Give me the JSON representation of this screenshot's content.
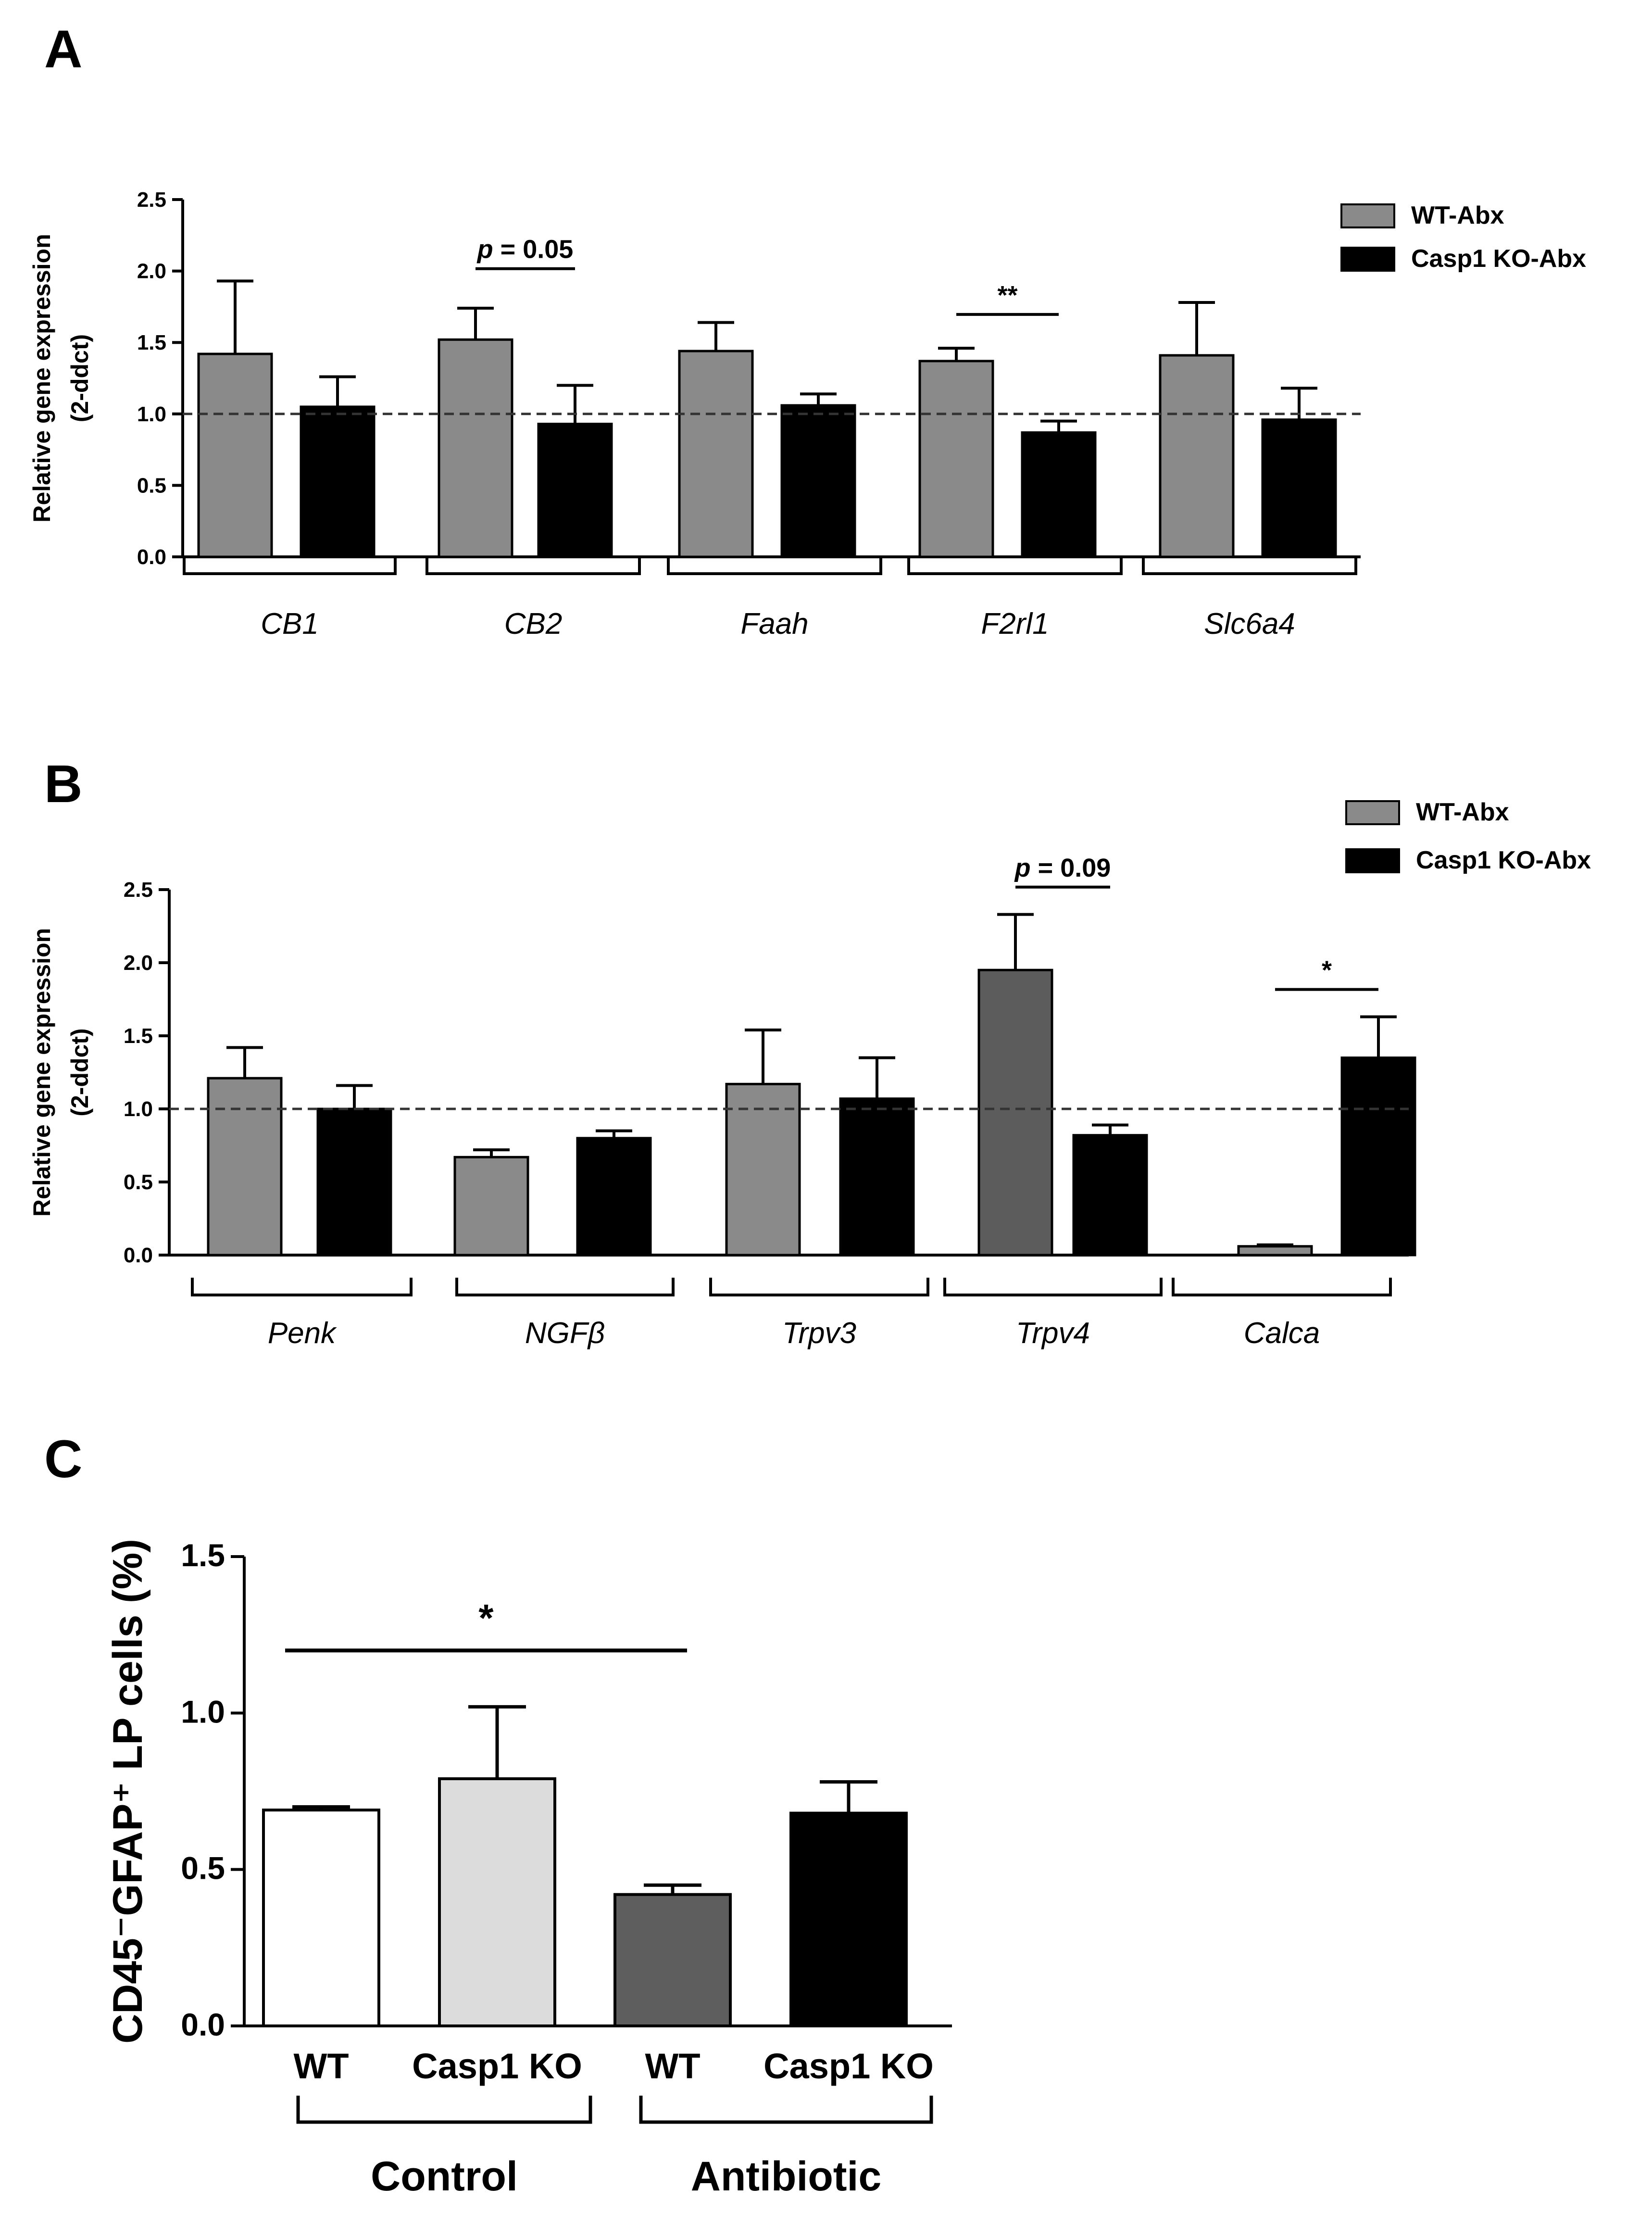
{
  "colors": {
    "wt_abx": "#8a8a8a",
    "wt_abx_trpv4": "#5c5c5c",
    "casp1_abx": "#000000",
    "c_wt_control": "#ffffff",
    "c_casp1_control": "#dcdcdc",
    "c_wt_antibiotic": "#5e5e5e",
    "c_casp1_antibiotic": "#000000"
  },
  "chart_data": [
    {
      "panel": "A",
      "type": "bar",
      "ylabel_line1": "Relative gene expression",
      "ylabel_line2": "(2-ddct)",
      "ylim": [
        0,
        2.5
      ],
      "yticks": [
        "0.0",
        "0.5",
        "1.0",
        "1.5",
        "2.0",
        "2.5"
      ],
      "reference_line": 1.0,
      "categories": [
        "CB1",
        "CB2",
        "Faah",
        "F2rl1",
        "Slc6a4"
      ],
      "legend": [
        "WT-Abx",
        "Casp1 KO-Abx"
      ],
      "series": [
        {
          "name": "WT-Abx",
          "values": [
            1.42,
            1.52,
            1.44,
            1.37,
            1.41
          ],
          "errors": [
            0.51,
            0.22,
            0.2,
            0.09,
            0.37
          ]
        },
        {
          "name": "Casp1 KO-Abx",
          "values": [
            1.05,
            0.93,
            1.06,
            0.87,
            0.96
          ],
          "errors": [
            0.21,
            0.27,
            0.08,
            0.08,
            0.22
          ]
        }
      ],
      "annotations": [
        {
          "category": "CB2",
          "prefix": "p",
          "text": " = 0.05",
          "y": 2.05
        },
        {
          "category": "F2rl1",
          "prefix": "",
          "text": "**",
          "y": 1.73
        }
      ]
    },
    {
      "panel": "B",
      "type": "bar",
      "ylabel_line1": "Relative gene expression",
      "ylabel_line2": "(2-ddct)",
      "ylim": [
        0,
        2.5
      ],
      "yticks": [
        "0.0",
        "0.5",
        "1.0",
        "1.5",
        "2.0",
        "2.5"
      ],
      "reference_line": 1.0,
      "categories": [
        "Penk",
        "NGFβ",
        "Trpv3",
        "Trpv4",
        "Calca"
      ],
      "legend": [
        "WT-Abx",
        "Casp1 KO-Abx"
      ],
      "series": [
        {
          "name": "WT-Abx",
          "values": [
            1.21,
            0.67,
            1.17,
            1.95,
            0.06
          ],
          "errors": [
            0.21,
            0.05,
            0.37,
            0.38,
            0.01
          ]
        },
        {
          "name": "Casp1 KO-Abx",
          "values": [
            1.0,
            0.8,
            1.07,
            0.82,
            1.35
          ],
          "errors": [
            0.16,
            0.05,
            0.28,
            0.07,
            0.28
          ]
        }
      ],
      "annotations": [
        {
          "category": "Trpv4",
          "prefix": "p",
          "text": " = 0.09",
          "y": 2.55
        },
        {
          "category": "Calca",
          "prefix": "",
          "text": "*",
          "y": 1.85
        }
      ]
    },
    {
      "panel": "C",
      "type": "bar",
      "ylabel": "CD45⁻GFAP⁺ LP cells (%)",
      "ylim": [
        0,
        1.5
      ],
      "yticks": [
        "0.0",
        "0.5",
        "1.0",
        "1.5"
      ],
      "categories": [
        "WT",
        "Casp1 KO",
        "WT",
        "Casp1 KO"
      ],
      "groups": [
        "Control",
        "Antibiotic"
      ],
      "values": [
        0.69,
        0.79,
        0.42,
        0.68
      ],
      "errors": [
        0.01,
        0.23,
        0.03,
        0.1
      ],
      "annotations": [
        {
          "text": "*",
          "from_bar": 0,
          "to_bar": 2,
          "y": 1.2
        }
      ]
    }
  ]
}
